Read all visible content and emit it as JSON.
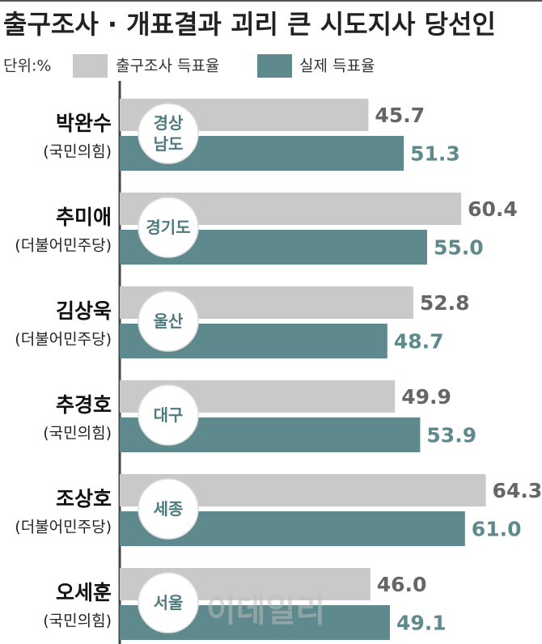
{
  "chart_data": {
    "type": "bar",
    "orientation": "horizontal",
    "title": "출구조사 · 개표결과 괴리 큰 시도지사 당선인",
    "unit": "단위:%",
    "categories": [
      "경상\n남도",
      "경기도",
      "울산",
      "대구",
      "세종",
      "서울"
    ],
    "candidates": [
      "박완수",
      "추미애",
      "김상욱",
      "추경호",
      "조상호",
      "오세훈"
    ],
    "parties": [
      "(국민의힘)",
      "(더불어민주당)",
      "(더불어민주당)",
      "(국민의힘)",
      "(더불어민주당)",
      "(국민의힘)"
    ],
    "series": [
      {
        "name": "출구조사 득표율",
        "color": "#c9c9c9",
        "label_color": "#666666",
        "values": [
          45.7,
          60.4,
          52.8,
          49.9,
          64.3,
          46.0
        ],
        "value_labels": [
          "45.7",
          "60.4",
          "52.8",
          "49.9",
          "64.3",
          "46.0"
        ]
      },
      {
        "name": "실제 득표율",
        "color": "#5f8a8d",
        "label_color": "#5f8a8d",
        "values": [
          51.3,
          55.0,
          48.7,
          53.9,
          61.0,
          49.1
        ],
        "value_labels": [
          "51.3",
          "55.0",
          "48.7",
          "53.9",
          "61.0",
          "49.1"
        ]
      }
    ],
    "xlim": [
      6.3,
      73.2
    ],
    "watermark": "이데일리"
  }
}
